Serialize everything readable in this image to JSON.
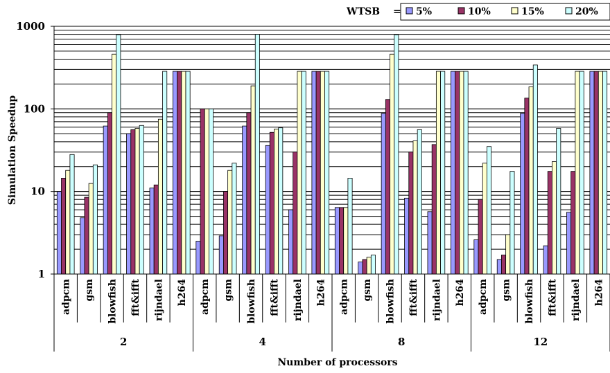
{
  "chart_data": {
    "type": "bar",
    "title": "",
    "xlabel": "Number of processors",
    "ylabel": "Simulation Speedup",
    "yscale": "log",
    "ylim": [
      1,
      1000
    ],
    "yticks": [
      "1",
      "10",
      "100",
      "1000"
    ],
    "grid": "horizontal",
    "legend": {
      "title": "WTSB",
      "separator": "=",
      "placement": "top-right"
    },
    "benchmarks": [
      "adpcm",
      "gsm",
      "blowfish",
      "fft&ifft",
      "rijndael",
      "h264"
    ],
    "processor_groups": [
      "2",
      "4",
      "8",
      "12"
    ],
    "series": [
      {
        "name": "5%",
        "color": "#9999ff",
        "values": [
          [
            10,
            4.8,
            62,
            50,
            11,
            285
          ],
          [
            2.5,
            2.9,
            62,
            36,
            6,
            285
          ],
          [
            6.4,
            1.4,
            88,
            8.3,
            5.7,
            285
          ],
          [
            2.6,
            1.5,
            88,
            2.2,
            5.6,
            285
          ]
        ]
      },
      {
        "name": "10%",
        "color": "#993366",
        "values": [
          [
            14.5,
            8.5,
            90,
            56,
            12,
            285
          ],
          [
            100,
            10,
            90,
            52,
            30,
            285
          ],
          [
            6.4,
            1.5,
            130,
            30,
            37,
            285
          ],
          [
            8,
            1.7,
            135,
            17.5,
            17.5,
            285
          ]
        ]
      },
      {
        "name": "15%",
        "color": "#ffffcc",
        "values": [
          [
            18,
            12.5,
            460,
            58,
            75,
            285
          ],
          [
            100,
            18,
            190,
            57,
            285,
            285
          ],
          [
            6.4,
            1.6,
            460,
            41,
            285,
            285
          ],
          [
            22,
            3,
            185,
            23,
            285,
            285
          ]
        ]
      },
      {
        "name": "20%",
        "color": "#ccffff",
        "values": [
          [
            28,
            21,
            790,
            63,
            285,
            285
          ],
          [
            100,
            22,
            800,
            59,
            285,
            285
          ],
          [
            14.5,
            1.7,
            790,
            56,
            285,
            285
          ],
          [
            35,
            17.5,
            340,
            58,
            285,
            285
          ]
        ]
      }
    ]
  }
}
